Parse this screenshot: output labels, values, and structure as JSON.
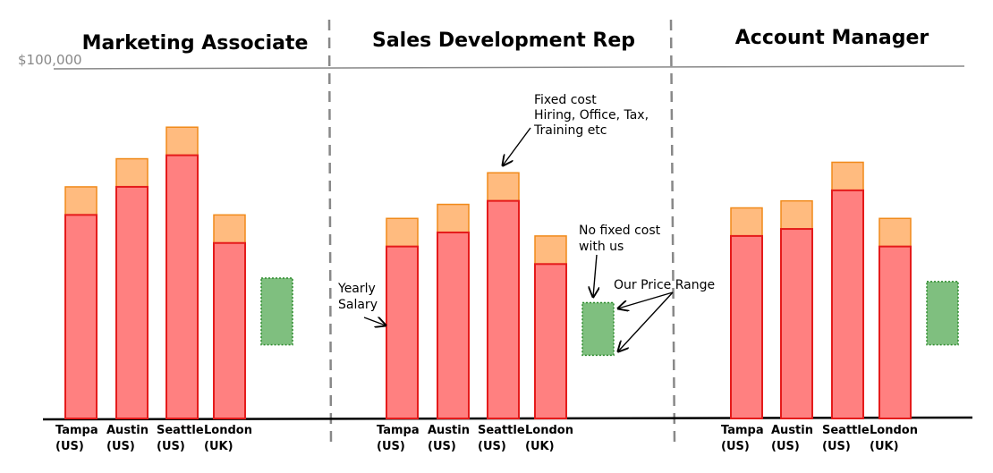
{
  "chart_data": {
    "type": "bar",
    "stacked": true,
    "reference_line": {
      "value": 100000,
      "label": "$100,000",
      "color": "#888888"
    },
    "segments": [
      {
        "name": "Yearly Salary",
        "fill": "#ff8080",
        "stroke": "#e51b1b"
      },
      {
        "name": "Fixed cost",
        "fill": "#ffbb7f",
        "stroke": "#f08a1a"
      }
    ],
    "price_range_color": {
      "fill": "#7fbf7f",
      "stroke": "#2e8b2e"
    },
    "panels": [
      {
        "title": "Marketing Associate",
        "title_color": "#00b3ff",
        "categories": [
          {
            "line1": "Tampa",
            "line2": "(US)"
          },
          {
            "line1": "Austin",
            "line2": "(US)"
          },
          {
            "line1": "Seattle",
            "line2": "(US)"
          },
          {
            "line1": "London",
            "line2": "(UK)"
          }
        ],
        "salary": [
          58000,
          66000,
          75000,
          50000
        ],
        "fixed_cost": [
          8000,
          8000,
          8000,
          8000
        ],
        "price_range": [
          21000,
          40000
        ]
      },
      {
        "title": "Sales Development Rep",
        "title_color": "#3333cc",
        "categories": [
          {
            "line1": "Tampa",
            "line2": "(US)"
          },
          {
            "line1": "Austin",
            "line2": "(US)"
          },
          {
            "line1": "Seattle",
            "line2": "(US)"
          },
          {
            "line1": "London",
            "line2": "(UK)"
          }
        ],
        "salary": [
          49000,
          53000,
          62000,
          44000
        ],
        "fixed_cost": [
          8000,
          8000,
          8000,
          8000
        ],
        "price_range": [
          18000,
          33000
        ]
      },
      {
        "title": "Account Manager",
        "title_color": "#ff00ff",
        "categories": [
          {
            "line1": "Tampa",
            "line2": "(US)"
          },
          {
            "line1": "Austin",
            "line2": "(US)"
          },
          {
            "line1": "Seattle",
            "line2": "(US)"
          },
          {
            "line1": "London",
            "line2": "(UK)"
          }
        ],
        "salary": [
          52000,
          54000,
          65000,
          49000
        ],
        "fixed_cost": [
          8000,
          8000,
          8000,
          8000
        ],
        "price_range": [
          21000,
          39000
        ]
      }
    ],
    "annotations": {
      "fixed_cost": [
        "Fixed cost",
        "Hiring, Office, Tax,",
        "Training etc"
      ],
      "salary": [
        "Yearly",
        "Salary"
      ],
      "no_fixed_cost": [
        "No fixed cost",
        "with us"
      ],
      "price_range": "Our Price Range"
    }
  }
}
